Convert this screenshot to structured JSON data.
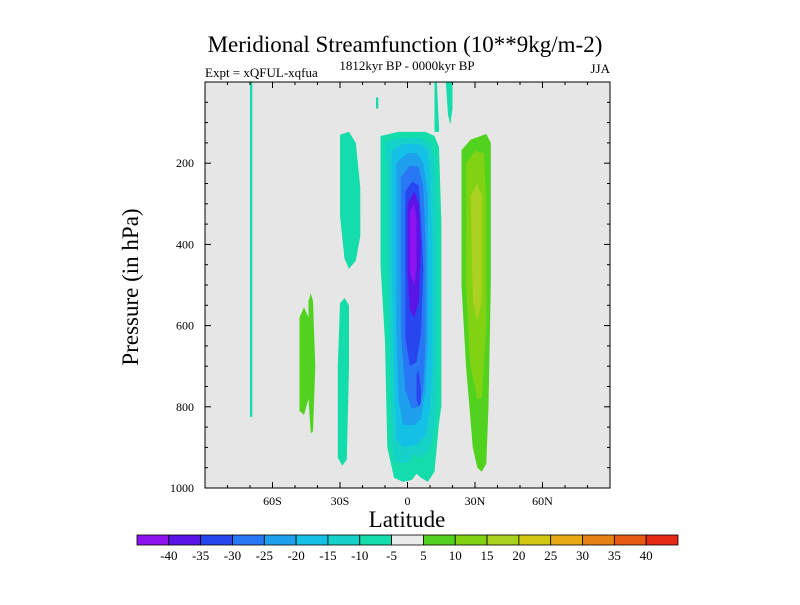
{
  "chart_data": {
    "type": "heatmap",
    "title": "Meridional Streamfunction (10**9kg/m-2)",
    "left_string": "Expt = xQFUL-xqfua",
    "center_string": "1812kyr BP - 0000kyr BP",
    "right_string": "JJA",
    "xlabel": "Latitude",
    "ylabel": "Pressure (in hPa)",
    "xlim": [
      -90,
      90
    ],
    "ylim": [
      1000,
      0
    ],
    "x_ticks": [
      -60,
      -30,
      0,
      30,
      60
    ],
    "x_tick_labels": [
      "60S",
      "30S",
      "0",
      "30N",
      "60N"
    ],
    "y_ticks": [
      200,
      400,
      600,
      800,
      1000
    ],
    "y_tick_labels": [
      "200",
      "400",
      "600",
      "800",
      "1000"
    ],
    "missing_color": "#e6e6e6",
    "colorbar": {
      "labels": [
        "-40",
        "-35",
        "-30",
        "-25",
        "-20",
        "-15",
        "-10",
        "-5",
        "5",
        "10",
        "15",
        "20",
        "25",
        "30",
        "35",
        "40"
      ],
      "colors": [
        "#8c14f0",
        "#5a14e6",
        "#2846f0",
        "#2878f5",
        "#1ea0ec",
        "#14c0e6",
        "#14d2c8",
        "#14dcaa",
        "#ebebeb",
        "#50d21e",
        "#82d214",
        "#aad21e",
        "#d2c814",
        "#e6aa14",
        "#e68214",
        "#e65a14",
        "#e62814"
      ]
    },
    "regions": [
      {
        "name": "neg-5-band-lon80s",
        "color_index": 7,
        "points": [
          [
            -70,
            0
          ],
          [
            -69,
            0
          ],
          [
            -69,
            825
          ],
          [
            -70,
            825
          ]
        ]
      },
      {
        "name": "neg-5-tongue-35s",
        "color_index": 7,
        "points": [
          [
            -30,
            130
          ],
          [
            -26,
            123
          ],
          [
            -23,
            150
          ],
          [
            -21,
            260
          ],
          [
            -21,
            380
          ],
          [
            -23,
            440
          ],
          [
            -26,
            460
          ],
          [
            -28,
            435
          ],
          [
            -30,
            330
          ]
        ]
      },
      {
        "name": "neg-5-lower-35s",
        "color_index": 7,
        "points": [
          [
            -30,
            545
          ],
          [
            -28,
            532
          ],
          [
            -26,
            550
          ],
          [
            -26,
            700
          ],
          [
            -27,
            930
          ],
          [
            -29,
            945
          ],
          [
            -31,
            925
          ],
          [
            -31,
            700
          ]
        ]
      },
      {
        "name": "neg-5-main-cell",
        "color_index": 7,
        "points": [
          [
            -12,
            133
          ],
          [
            -4,
            123
          ],
          [
            8,
            123
          ],
          [
            12,
            133
          ],
          [
            14,
            160
          ],
          [
            15,
            340
          ],
          [
            15,
            800
          ],
          [
            14,
            840
          ],
          [
            12,
            960
          ],
          [
            9,
            985
          ],
          [
            6,
            975
          ],
          [
            4,
            965
          ],
          [
            2,
            980
          ],
          [
            -2,
            985
          ],
          [
            -6,
            975
          ],
          [
            -9,
            900
          ],
          [
            -10,
            640
          ],
          [
            -12,
            450
          ],
          [
            -12,
            260
          ]
        ]
      },
      {
        "name": "neg-5-top-plume",
        "color_index": 7,
        "points": [
          [
            12,
            123
          ],
          [
            12,
            0
          ],
          [
            13,
            0
          ],
          [
            14,
            110
          ],
          [
            14,
            123
          ]
        ]
      },
      {
        "name": "neg-5-top-plume-2",
        "color_index": 7,
        "points": [
          [
            17,
            0
          ],
          [
            20,
            0
          ],
          [
            20,
            65
          ],
          [
            19,
            105
          ],
          [
            18,
            80
          ]
        ]
      },
      {
        "name": "neg-5-tiny-strip",
        "color_index": 7,
        "points": [
          [
            -14,
            38
          ],
          [
            -13,
            38
          ],
          [
            -13,
            65
          ],
          [
            -14,
            65
          ]
        ]
      },
      {
        "name": "neg-10",
        "color_index": 6,
        "points": [
          [
            -10,
            150
          ],
          [
            -4,
            138
          ],
          [
            6,
            138
          ],
          [
            10,
            150
          ],
          [
            12,
            190
          ],
          [
            13,
            340
          ],
          [
            13,
            750
          ],
          [
            12,
            850
          ],
          [
            10,
            905
          ],
          [
            6,
            925
          ],
          [
            3,
            915
          ],
          [
            1,
            935
          ],
          [
            -3,
            940
          ],
          [
            -6,
            930
          ],
          [
            -7,
            880
          ],
          [
            -8,
            640
          ],
          [
            -9,
            400
          ],
          [
            -9,
            220
          ]
        ]
      },
      {
        "name": "neg-15",
        "color_index": 5,
        "points": [
          [
            -7,
            170
          ],
          [
            -2,
            152
          ],
          [
            5,
            152
          ],
          [
            9,
            170
          ],
          [
            10,
            230
          ],
          [
            11,
            400
          ],
          [
            11,
            700
          ],
          [
            10,
            800
          ],
          [
            8,
            870
          ],
          [
            5,
            890
          ],
          [
            2,
            895
          ],
          [
            -2,
            900
          ],
          [
            -5,
            880
          ],
          [
            -6,
            700
          ],
          [
            -7,
            460
          ],
          [
            -7,
            260
          ]
        ]
      },
      {
        "name": "neg-20",
        "color_index": 4,
        "points": [
          [
            -5,
            200
          ],
          [
            0,
            175
          ],
          [
            4,
            175
          ],
          [
            7,
            200
          ],
          [
            9,
            280
          ],
          [
            9,
            650
          ],
          [
            8,
            760
          ],
          [
            6,
            830
          ],
          [
            3,
            845
          ],
          [
            -2,
            845
          ],
          [
            -4,
            780
          ],
          [
            -5,
            600
          ],
          [
            -5,
            350
          ]
        ]
      },
      {
        "name": "neg-25",
        "color_index": 3,
        "points": [
          [
            -3,
            235
          ],
          [
            1,
            205
          ],
          [
            5,
            210
          ],
          [
            7,
            260
          ],
          [
            8,
            400
          ],
          [
            8,
            640
          ],
          [
            7,
            760
          ],
          [
            5,
            800
          ],
          [
            2,
            805
          ],
          [
            -1,
            760
          ],
          [
            -3,
            620
          ],
          [
            -3,
            380
          ]
        ]
      },
      {
        "name": "neg-30",
        "color_index": 2,
        "points": [
          [
            -1,
            270
          ],
          [
            2,
            245
          ],
          [
            5,
            255
          ],
          [
            6,
            340
          ],
          [
            7,
            460
          ],
          [
            6,
            620
          ],
          [
            4,
            690
          ],
          [
            1,
            700
          ],
          [
            -1,
            630
          ],
          [
            -1,
            420
          ]
        ]
      },
      {
        "name": "neg-30-lower",
        "color_index": 2,
        "points": [
          [
            4,
            720
          ],
          [
            5,
            710
          ],
          [
            6,
            760
          ],
          [
            6,
            790
          ],
          [
            5,
            800
          ],
          [
            4,
            780
          ]
        ]
      },
      {
        "name": "neg-35",
        "color_index": 1,
        "points": [
          [
            0,
            300
          ],
          [
            3,
            270
          ],
          [
            5,
            300
          ],
          [
            6,
            400
          ],
          [
            5,
            540
          ],
          [
            3,
            580
          ],
          [
            1,
            560
          ],
          [
            0,
            460
          ]
        ]
      },
      {
        "name": "neg-40",
        "color_index": 0,
        "points": [
          [
            1,
            320
          ],
          [
            3,
            300
          ],
          [
            4,
            340
          ],
          [
            4,
            460
          ],
          [
            3,
            500
          ],
          [
            1,
            470
          ]
        ]
      },
      {
        "name": "pos-5-tongue-50s",
        "color_index": 9,
        "points": [
          [
            -48,
            580
          ],
          [
            -46,
            555
          ],
          [
            -44,
            580
          ],
          [
            -44,
            780
          ],
          [
            -46,
            820
          ],
          [
            -48,
            810
          ]
        ]
      },
      {
        "name": "pos-5-tongue-47s",
        "color_index": 9,
        "points": [
          [
            -44,
            540
          ],
          [
            -43,
            520
          ],
          [
            -42,
            540
          ],
          [
            -41,
            700
          ],
          [
            -42,
            860
          ],
          [
            -43,
            865
          ],
          [
            -44,
            780
          ]
        ]
      },
      {
        "name": "pos-5-tall-25n",
        "color_index": 9,
        "points": [
          [
            24,
            168
          ],
          [
            28,
            142
          ],
          [
            35,
            128
          ],
          [
            37,
            150
          ],
          [
            37,
            500
          ],
          [
            36,
            800
          ],
          [
            35,
            940
          ],
          [
            33,
            960
          ],
          [
            31,
            950
          ],
          [
            29,
            900
          ],
          [
            26,
            700
          ],
          [
            24,
            500
          ]
        ]
      },
      {
        "name": "pos-10",
        "color_index": 10,
        "points": [
          [
            26,
            200
          ],
          [
            30,
            170
          ],
          [
            34,
            175
          ],
          [
            35,
            300
          ],
          [
            35,
            600
          ],
          [
            33,
            780
          ],
          [
            31,
            780
          ],
          [
            28,
            700
          ],
          [
            26,
            500
          ]
        ]
      },
      {
        "name": "pos-15",
        "color_index": 11,
        "points": [
          [
            28,
            280
          ],
          [
            31,
            250
          ],
          [
            33,
            280
          ],
          [
            33,
            540
          ],
          [
            31,
            590
          ],
          [
            29,
            540
          ]
        ]
      }
    ]
  }
}
